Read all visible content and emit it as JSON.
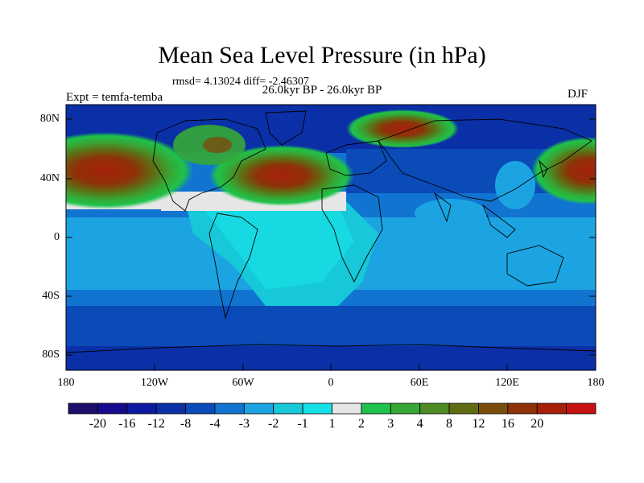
{
  "title": "Mean Sea Level Pressure (in hPa)",
  "stats": "rmsd= 4.13024 diff= -2.46307",
  "period": "26.0kyr BP - 26.0kyr BP",
  "left_label": "Expt = temfa-temba",
  "right_label": "DJF",
  "lat_labels": [
    "80N",
    "40N",
    "0",
    "40S",
    "80S"
  ],
  "lon_labels": [
    "180",
    "120W",
    "60W",
    "0",
    "60E",
    "120E",
    "180"
  ],
  "colorbar": {
    "labels": [
      "-20",
      "-16",
      "-12",
      "-8",
      "-4",
      "-3",
      "-2",
      "-1",
      "1",
      "2",
      "3",
      "4",
      "8",
      "12",
      "16",
      "20"
    ],
    "colors": [
      "#1c0f6b",
      "#160b8c",
      "#0d1aa0",
      "#0b2fa6",
      "#0a4bb8",
      "#1174d0",
      "#1ca4e2",
      "#16c8d8",
      "#17e0e6",
      "#e6e6e6",
      "#1fc24a",
      "#35a836",
      "#4e8a23",
      "#5f6c13",
      "#7a4d0d",
      "#8e3208",
      "#a6200a",
      "#c81212"
    ]
  },
  "colors": {
    "ocean_base": "#1aa8dc",
    "high_red": "#b02a10",
    "neutral": "#e6e6e6",
    "deep_blue": "#0b2fa6"
  }
}
